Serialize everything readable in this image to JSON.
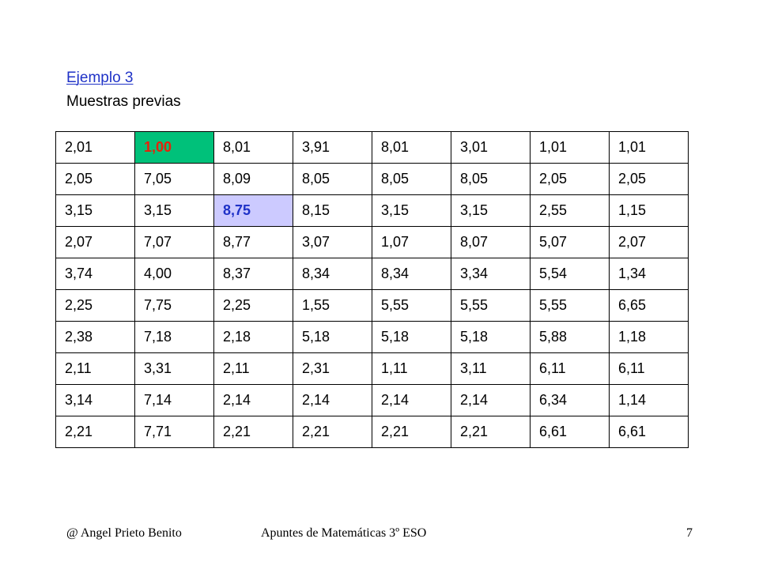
{
  "heading": {
    "link_text": "Ejemplo 3",
    "subtitle": "Muestras previas"
  },
  "colors": {
    "link": "#1f32c7",
    "highlight_green_bg": "#00c17a",
    "highlight_green_text": "#e8210a",
    "highlight_blue_bg": "#cccaff",
    "highlight_blue_text": "#1f32c7"
  },
  "table": {
    "rows": [
      [
        "2,01",
        "1,00",
        "8,01",
        "3,91",
        "8,01",
        "3,01",
        "1,01",
        "1,01"
      ],
      [
        "2,05",
        "7,05",
        "8,09",
        "8,05",
        "8,05",
        "8,05",
        "2,05",
        "2,05"
      ],
      [
        "3,15",
        "3,15",
        "8,75",
        "8,15",
        "3,15",
        "3,15",
        "2,55",
        "1,15"
      ],
      [
        "2,07",
        "7,07",
        "8,77",
        "3,07",
        "1,07",
        "8,07",
        "5,07",
        "2,07"
      ],
      [
        "3,74",
        "4,00",
        "8,37",
        "8,34",
        "8,34",
        "3,34",
        "5,54",
        "1,34"
      ],
      [
        "2,25",
        "7,75",
        "2,25",
        "1,55",
        "5,55",
        "5,55",
        "5,55",
        "6,65"
      ],
      [
        "2,38",
        "7,18",
        "2,18",
        "5,18",
        "5,18",
        "5,18",
        "5,88",
        "1,18"
      ],
      [
        "2,11",
        "3,31",
        "2,11",
        "2,31",
        "1,11",
        "3,11",
        "6,11",
        "6,11"
      ],
      [
        "3,14",
        "7,14",
        "2,14",
        "2,14",
        "2,14",
        "2,14",
        "6,34",
        "1,14"
      ],
      [
        "2,21",
        "7,71",
        "2,21",
        "2,21",
        "2,21",
        "2,21",
        "6,61",
        "6,61"
      ]
    ],
    "highlights": [
      {
        "row": 0,
        "col": 1,
        "bg": "#00c17a",
        "color": "#e8210a"
      },
      {
        "row": 2,
        "col": 2,
        "bg": "#cccaff",
        "color": "#1f32c7"
      }
    ]
  },
  "footer": {
    "author": "@ Angel Prieto Benito",
    "title": "Apuntes de Matemáticas 3º ESO",
    "page_number": "7"
  }
}
